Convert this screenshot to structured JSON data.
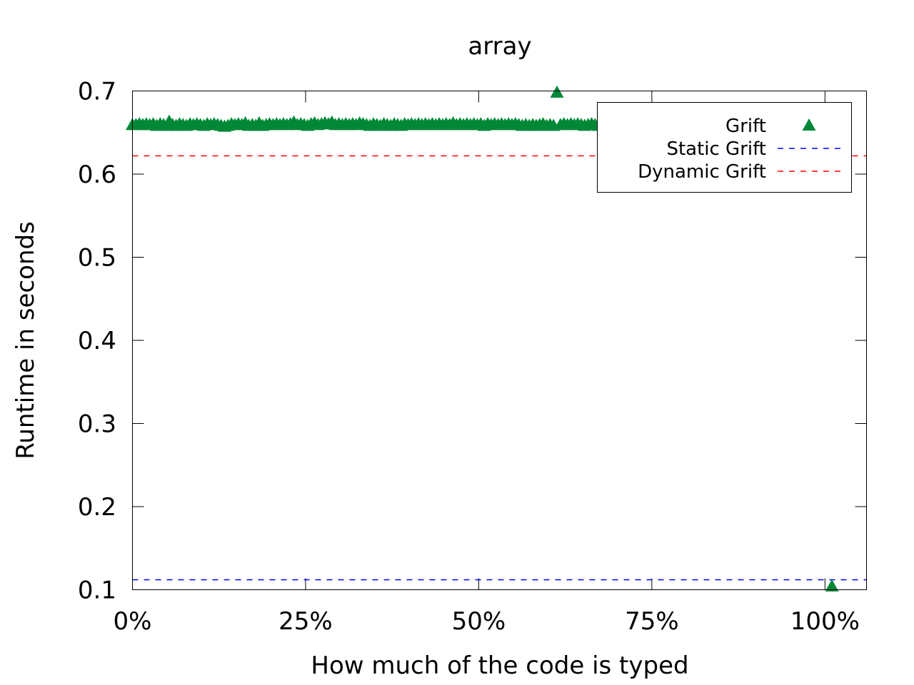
{
  "chart_data": {
    "type": "scatter",
    "title": "array",
    "xlabel": "How much of the code is typed",
    "ylabel": "Runtime in seconds",
    "xlim": [
      0,
      106
    ],
    "ylim": [
      0.1,
      0.7
    ],
    "x_ticks": [
      0,
      25,
      50,
      75,
      100
    ],
    "x_tick_labels": [
      "0%",
      "25%",
      "50%",
      "75%",
      "100%"
    ],
    "y_ticks": [
      0.1,
      0.2,
      0.3,
      0.4,
      0.5,
      0.6,
      0.7
    ],
    "y_tick_labels": [
      "0.1",
      "0.2",
      "0.3",
      "0.4",
      "0.5",
      "0.6",
      "0.7"
    ],
    "grid": false,
    "legend_position": "top-right",
    "series": [
      {
        "name": "Grift",
        "kind": "points",
        "marker": "triangle",
        "color": "#008837",
        "points": [
          [
            0.0,
            0.659
          ],
          [
            0.5,
            0.659
          ],
          [
            1.0,
            0.66
          ],
          [
            1.5,
            0.659
          ],
          [
            2.0,
            0.66
          ],
          [
            2.5,
            0.659
          ],
          [
            3.0,
            0.66
          ],
          [
            3.5,
            0.658
          ],
          [
            4.0,
            0.66
          ],
          [
            4.5,
            0.659
          ],
          [
            5.0,
            0.658
          ],
          [
            5.3,
            0.663
          ],
          [
            5.8,
            0.659
          ],
          [
            6.3,
            0.658
          ],
          [
            6.8,
            0.66
          ],
          [
            7.3,
            0.659
          ],
          [
            7.8,
            0.658
          ],
          [
            8.3,
            0.66
          ],
          [
            8.8,
            0.659
          ],
          [
            9.3,
            0.66
          ],
          [
            9.8,
            0.659
          ],
          [
            10.3,
            0.658
          ],
          [
            10.8,
            0.66
          ],
          [
            11.3,
            0.659
          ],
          [
            11.8,
            0.66
          ],
          [
            12.3,
            0.659
          ],
          [
            12.8,
            0.658
          ],
          [
            13.3,
            0.657
          ],
          [
            13.8,
            0.658
          ],
          [
            14.3,
            0.66
          ],
          [
            14.8,
            0.659
          ],
          [
            15.3,
            0.66
          ],
          [
            15.8,
            0.659
          ],
          [
            16.3,
            0.661
          ],
          [
            16.8,
            0.658
          ],
          [
            17.3,
            0.659
          ],
          [
            17.8,
            0.658
          ],
          [
            18.3,
            0.661
          ],
          [
            18.8,
            0.658
          ],
          [
            19.3,
            0.659
          ],
          [
            19.8,
            0.66
          ],
          [
            20.3,
            0.659
          ],
          [
            20.8,
            0.66
          ],
          [
            21.3,
            0.659
          ],
          [
            21.8,
            0.66
          ],
          [
            22.3,
            0.659
          ],
          [
            22.8,
            0.66
          ],
          [
            23.3,
            0.662
          ],
          [
            23.8,
            0.659
          ],
          [
            24.3,
            0.66
          ],
          [
            24.8,
            0.659
          ],
          [
            25.3,
            0.658
          ],
          [
            25.8,
            0.66
          ],
          [
            26.3,
            0.661
          ],
          [
            26.8,
            0.659
          ],
          [
            27.3,
            0.66
          ],
          [
            27.8,
            0.661
          ],
          [
            28.3,
            0.66
          ],
          [
            28.8,
            0.662
          ],
          [
            29.3,
            0.659
          ],
          [
            29.8,
            0.66
          ],
          [
            30.3,
            0.659
          ],
          [
            30.8,
            0.66
          ],
          [
            31.3,
            0.659
          ],
          [
            31.8,
            0.66
          ],
          [
            32.3,
            0.659
          ],
          [
            32.8,
            0.661
          ],
          [
            33.3,
            0.66
          ],
          [
            33.8,
            0.659
          ],
          [
            34.3,
            0.658
          ],
          [
            34.8,
            0.66
          ],
          [
            35.3,
            0.659
          ],
          [
            35.8,
            0.658
          ],
          [
            36.3,
            0.66
          ],
          [
            36.8,
            0.659
          ],
          [
            37.3,
            0.658
          ],
          [
            37.8,
            0.66
          ],
          [
            38.3,
            0.659
          ],
          [
            38.8,
            0.658
          ],
          [
            39.3,
            0.66
          ],
          [
            39.8,
            0.659
          ],
          [
            40.3,
            0.66
          ],
          [
            40.8,
            0.659
          ],
          [
            41.3,
            0.66
          ],
          [
            41.8,
            0.659
          ],
          [
            42.3,
            0.66
          ],
          [
            42.8,
            0.659
          ],
          [
            43.3,
            0.66
          ],
          [
            43.8,
            0.659
          ],
          [
            44.3,
            0.66
          ],
          [
            44.8,
            0.659
          ],
          [
            45.3,
            0.66
          ],
          [
            45.8,
            0.659
          ],
          [
            46.3,
            0.661
          ],
          [
            46.8,
            0.659
          ],
          [
            47.3,
            0.66
          ],
          [
            47.8,
            0.659
          ],
          [
            48.3,
            0.66
          ],
          [
            48.8,
            0.659
          ],
          [
            49.3,
            0.66
          ],
          [
            49.8,
            0.659
          ],
          [
            50.3,
            0.66
          ],
          [
            50.8,
            0.658
          ],
          [
            51.3,
            0.66
          ],
          [
            51.8,
            0.659
          ],
          [
            52.3,
            0.66
          ],
          [
            52.8,
            0.659
          ],
          [
            53.3,
            0.66
          ],
          [
            53.8,
            0.659
          ],
          [
            54.3,
            0.66
          ],
          [
            54.8,
            0.659
          ],
          [
            55.3,
            0.66
          ],
          [
            55.8,
            0.659
          ],
          [
            56.3,
            0.658
          ],
          [
            56.8,
            0.659
          ],
          [
            57.3,
            0.658
          ],
          [
            57.8,
            0.659
          ],
          [
            58.3,
            0.658
          ],
          [
            58.8,
            0.659
          ],
          [
            59.3,
            0.66
          ],
          [
            59.8,
            0.658
          ],
          [
            60.3,
            0.659
          ],
          [
            60.8,
            0.658
          ],
          [
            61.3,
            0.698
          ],
          [
            61.8,
            0.659
          ],
          [
            62.3,
            0.66
          ],
          [
            62.8,
            0.659
          ],
          [
            63.3,
            0.66
          ],
          [
            63.8,
            0.659
          ],
          [
            64.3,
            0.66
          ],
          [
            64.8,
            0.659
          ],
          [
            65.3,
            0.658
          ],
          [
            65.8,
            0.659
          ],
          [
            66.3,
            0.66
          ],
          [
            66.8,
            0.659
          ],
          [
            67.3,
            0.658
          ],
          [
            67.8,
            0.659
          ],
          [
            68.3,
            0.659
          ],
          [
            101.0,
            0.104
          ]
        ]
      },
      {
        "name": "Static Grift",
        "kind": "hline",
        "y": 0.112,
        "color": "#0000ff",
        "dash": "dashed"
      },
      {
        "name": "Dynamic Grift",
        "kind": "hline",
        "y": 0.622,
        "color": "#ff0000",
        "dash": "dashed"
      }
    ]
  }
}
